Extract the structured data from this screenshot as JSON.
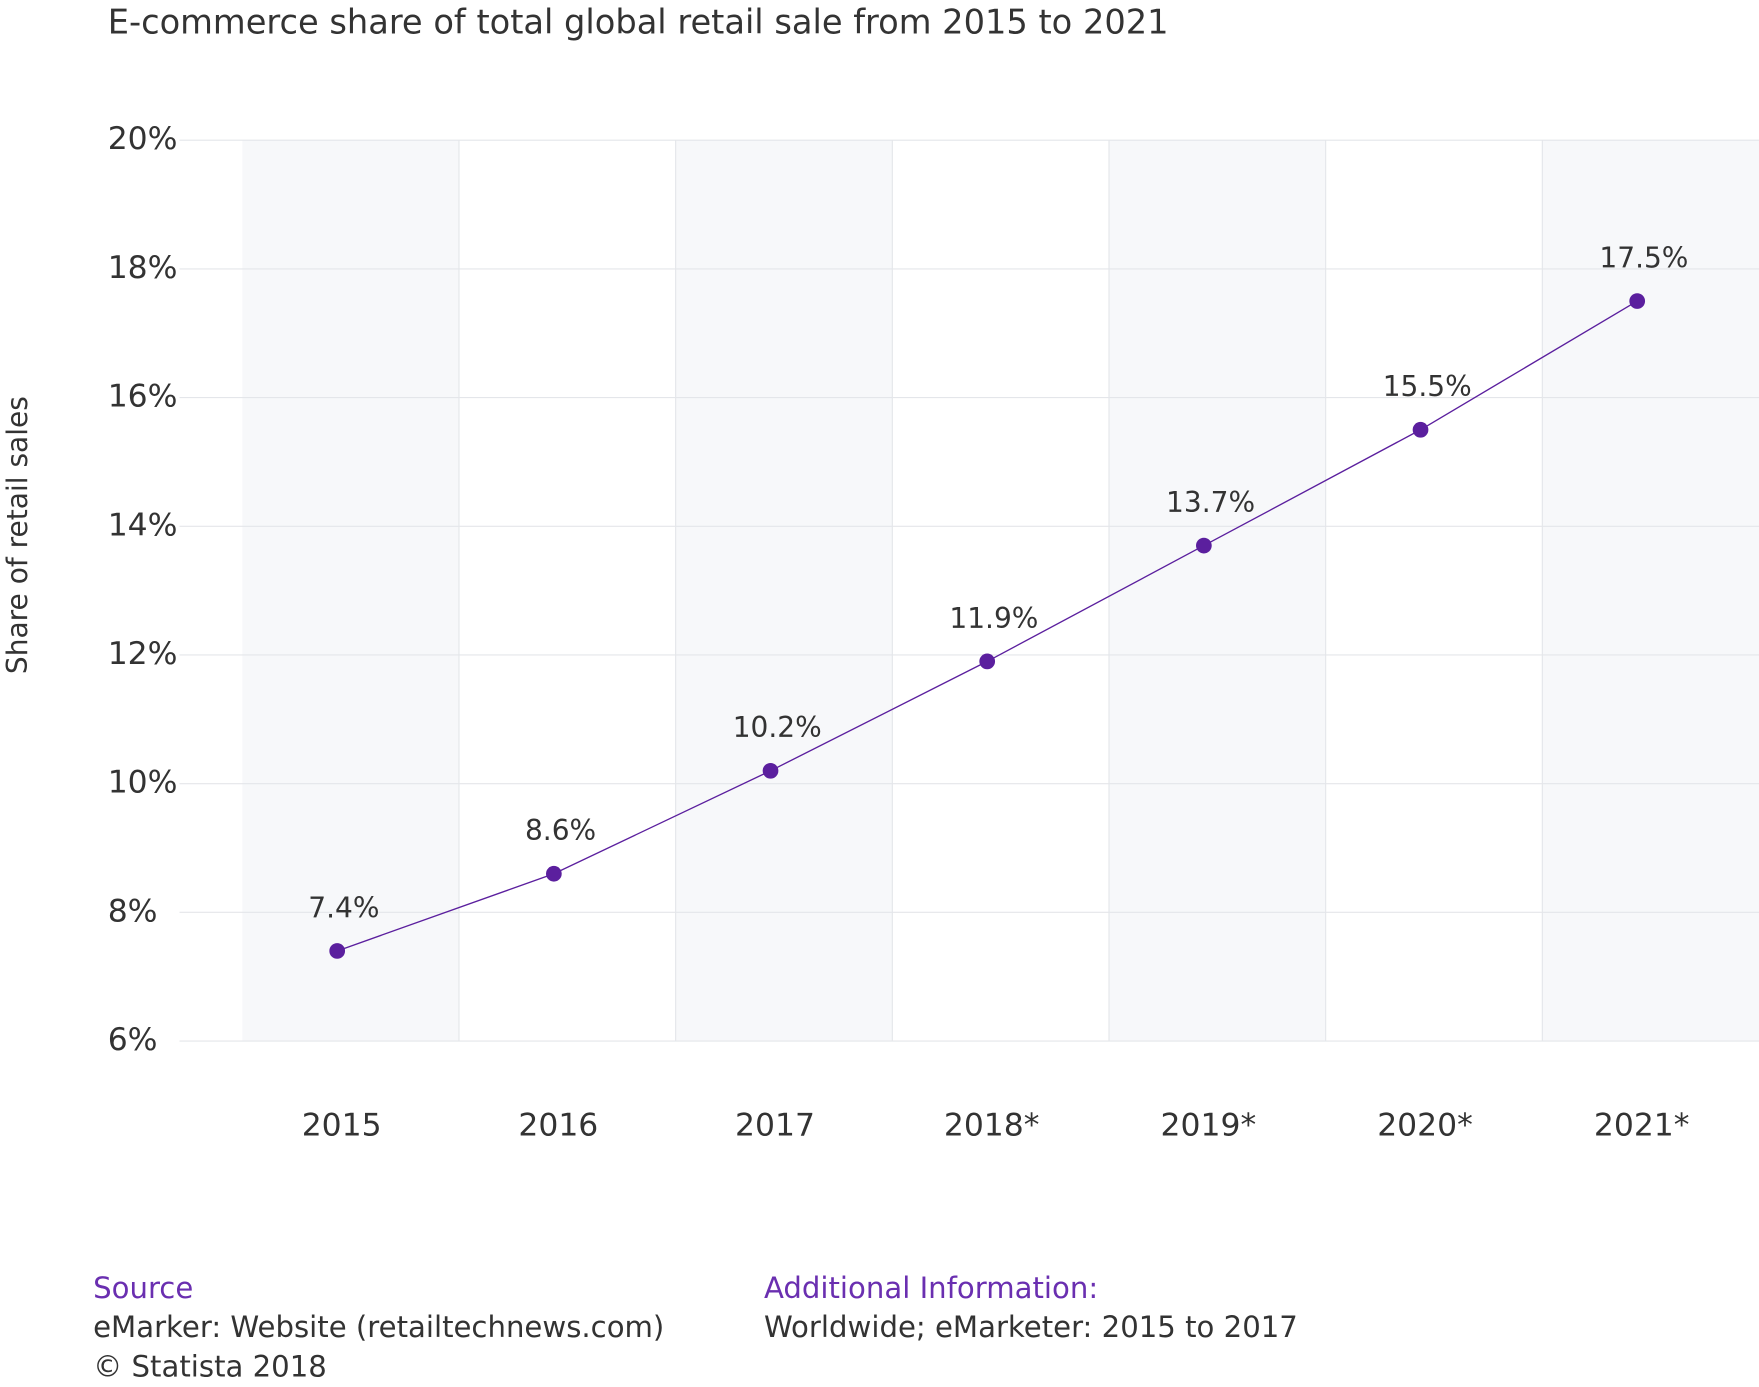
{
  "chart_data": {
    "type": "line",
    "title": "E-commerce share of total global retail sale from 2015 to 2021",
    "y_label": "Share of retail sales",
    "categories": [
      "2015",
      "2016",
      "2017",
      "2018*",
      "2019*",
      "2020*",
      "2021*"
    ],
    "series": [
      {
        "name": "Share of retail sales",
        "color": "#5b1f9e",
        "values": [
          7.4,
          8.6,
          10.2,
          11.9,
          13.7,
          15.5,
          17.5
        ],
        "value_labels": [
          "7.4%",
          "8.6%",
          "10.2%",
          "11.9%",
          "13.7%",
          "15.5%",
          "17.5%"
        ]
      }
    ],
    "ylim": [
      6,
      20
    ],
    "yticks": [
      {
        "value": 6,
        "label": "6%"
      },
      {
        "value": 8,
        "label": "8%"
      },
      {
        "value": 10,
        "label": "10%"
      },
      {
        "value": 12,
        "label": "12%"
      },
      {
        "value": 14,
        "label": "14%"
      },
      {
        "value": 16,
        "label": "16%"
      },
      {
        "value": 18,
        "label": "18%"
      },
      {
        "value": 20,
        "label": "20%"
      }
    ],
    "grid": true,
    "source_label": "Source",
    "source": "eMarker: Website (retailtechnews.com)",
    "copyright": "© Statista 2018",
    "additional_info_label": "Additional Information:",
    "additional_info": "Worldwide; eMarketer: 2015 to 2017"
  }
}
